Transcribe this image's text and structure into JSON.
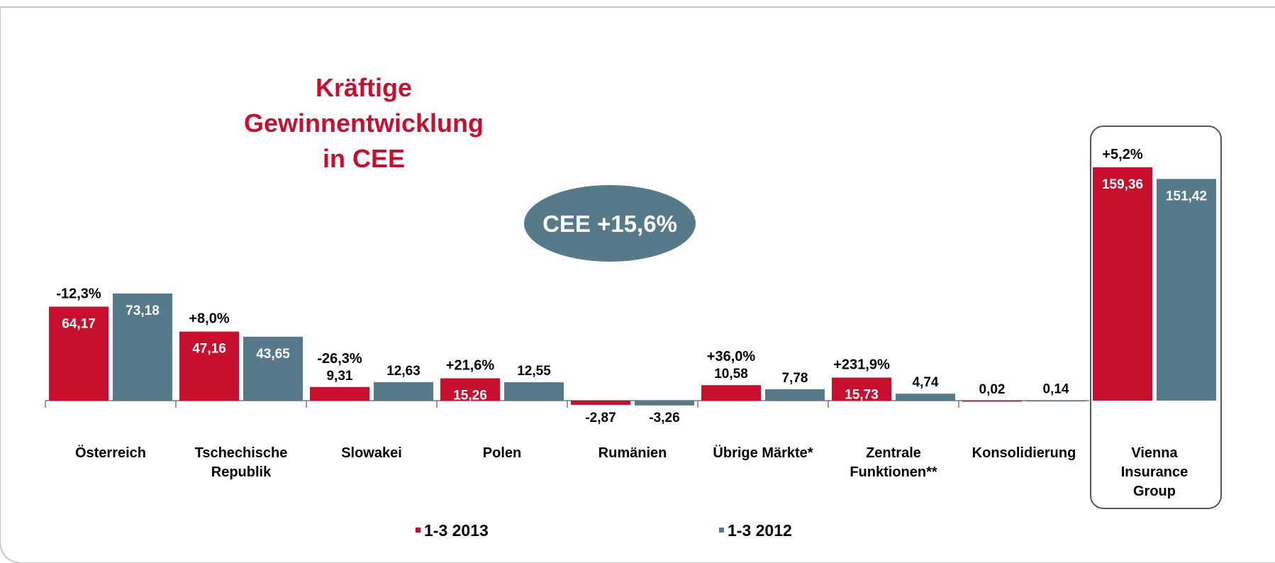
{
  "chart_data": {
    "type": "bar",
    "title": [
      "Kräftige",
      "Gewinnentwicklung",
      "in CEE"
    ],
    "badge": "CEE +15,6%",
    "categories": [
      [
        "Österreich"
      ],
      [
        "Tschechische",
        "Republik"
      ],
      [
        "Slowakei"
      ],
      [
        "Polen"
      ],
      [
        "Rumänien"
      ],
      [
        "Übrige Märkte*"
      ],
      [
        "Zentrale",
        "Funktionen**"
      ],
      [
        "Konsolidierung"
      ],
      [
        "Vienna",
        "Insurance",
        "Group"
      ]
    ],
    "series": [
      {
        "name": "1-3 2013",
        "color": "#c8102e",
        "values": [
          64.17,
          47.16,
          9.31,
          15.26,
          -2.87,
          10.58,
          15.73,
          0.02,
          159.36
        ],
        "value_labels": [
          "64,17",
          "47,16",
          "9,31",
          "15,26",
          "-2,87",
          "10,58",
          "15,73",
          "0,02",
          "159,36"
        ]
      },
      {
        "name": "1-3 2012",
        "color": "#557a8a",
        "values": [
          73.18,
          43.65,
          12.63,
          12.55,
          -3.26,
          7.78,
          4.74,
          0.14,
          151.42
        ],
        "value_labels": [
          "73,18",
          "43,65",
          "12,63",
          "12,55",
          "-3,26",
          "7,78",
          "4,74",
          "0,14",
          "151,42"
        ]
      }
    ],
    "change_labels": [
      "-12,3%",
      "+8,0%",
      "-26,3%",
      "+21,6%",
      null,
      "+36,0%",
      "+231,9%",
      null,
      "+5,2%"
    ],
    "ylim": [
      -10,
      170
    ]
  }
}
